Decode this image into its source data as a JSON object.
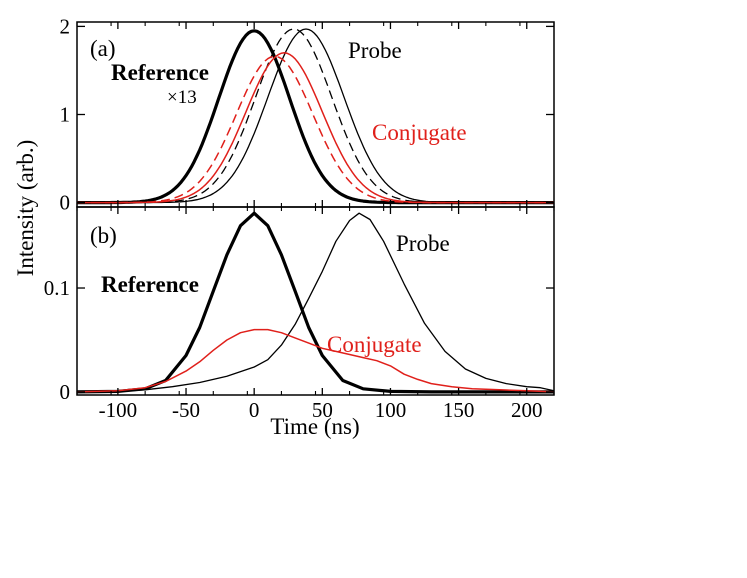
{
  "chart_data": [
    {
      "panel_label": "(a)",
      "type": "line",
      "xlim": [
        -130,
        220
      ],
      "ylim": [
        -0.05,
        2.05
      ],
      "x_ticks": [
        -100,
        -50,
        0,
        50,
        100,
        150,
        200
      ],
      "y_ticks": [
        0,
        1,
        2
      ],
      "y_tick_labels": [
        "0",
        "1",
        "2"
      ],
      "annotations": {
        "reference": "Reference",
        "scale": "×13",
        "probe": "Probe",
        "conjugate": "Conjugate"
      },
      "series": [
        {
          "label": "Reference",
          "color": "#000000",
          "style": "solid",
          "width": 3.2,
          "center": 0,
          "sigma": 26,
          "amplitude": 1.95
        },
        {
          "color": "#000000",
          "style": "solid",
          "width": 1.3,
          "center": 38,
          "sigma": 28,
          "amplitude": 1.97
        },
        {
          "color": "#000000",
          "style": "dashed",
          "width": 1.3,
          "center": 29,
          "sigma": 28,
          "amplitude": 1.97
        },
        {
          "color": "#e0201b",
          "style": "solid",
          "width": 1.5,
          "center": 22,
          "sigma": 28,
          "amplitude": 1.7
        },
        {
          "color": "#e0201b",
          "style": "dashed",
          "width": 1.5,
          "center": 15,
          "sigma": 28,
          "amplitude": 1.66
        }
      ]
    },
    {
      "panel_label": "(b)",
      "type": "line",
      "xlim": [
        -130,
        220
      ],
      "ylim": [
        -0.003,
        0.178
      ],
      "x_ticks": [
        -100,
        -50,
        0,
        50,
        100,
        150,
        200
      ],
      "x_tick_labels": [
        "-100",
        "-50",
        "0",
        "50",
        "100",
        "150",
        "200"
      ],
      "y_ticks": [
        0,
        0.1
      ],
      "y_tick_labels": [
        "0",
        "0.1"
      ],
      "xlabel": "Time (ns)",
      "annotations": {
        "reference": "Reference",
        "probe": "Probe",
        "conjugate": "Conjugate"
      },
      "series": [
        {
          "label": "Reference",
          "color": "#000000",
          "style": "solid",
          "width": 3.2,
          "points": [
            [
              -130,
              0.0
            ],
            [
              -100,
              0.0005
            ],
            [
              -80,
              0.003
            ],
            [
              -65,
              0.011
            ],
            [
              -50,
              0.035
            ],
            [
              -40,
              0.062
            ],
            [
              -30,
              0.097
            ],
            [
              -20,
              0.132
            ],
            [
              -10,
              0.16
            ],
            [
              0,
              0.172
            ],
            [
              10,
              0.16
            ],
            [
              20,
              0.132
            ],
            [
              30,
              0.097
            ],
            [
              40,
              0.062
            ],
            [
              50,
              0.035
            ],
            [
              65,
              0.011
            ],
            [
              80,
              0.003
            ],
            [
              100,
              0.0005
            ],
            [
              130,
              0.0
            ],
            [
              220,
              0.0
            ]
          ]
        },
        {
          "label": "Probe",
          "color": "#000000",
          "style": "solid",
          "width": 1.3,
          "points": [
            [
              -130,
              0.0
            ],
            [
              -100,
              0.0005
            ],
            [
              -80,
              0.002
            ],
            [
              -60,
              0.005
            ],
            [
              -40,
              0.009
            ],
            [
              -20,
              0.015
            ],
            [
              0,
              0.024
            ],
            [
              10,
              0.031
            ],
            [
              20,
              0.045
            ],
            [
              30,
              0.065
            ],
            [
              40,
              0.09
            ],
            [
              50,
              0.116
            ],
            [
              60,
              0.145
            ],
            [
              70,
              0.165
            ],
            [
              77,
              0.172
            ],
            [
              85,
              0.166
            ],
            [
              95,
              0.145
            ],
            [
              110,
              0.104
            ],
            [
              125,
              0.066
            ],
            [
              140,
              0.039
            ],
            [
              155,
              0.022
            ],
            [
              170,
              0.013
            ],
            [
              185,
              0.008
            ],
            [
              200,
              0.005
            ],
            [
              210,
              0.004
            ],
            [
              220,
              0.001
            ]
          ]
        },
        {
          "label": "Conjugate",
          "color": "#e0201b",
          "style": "solid",
          "width": 1.5,
          "points": [
            [
              -130,
              0.0
            ],
            [
              -100,
              0.001
            ],
            [
              -80,
              0.004
            ],
            [
              -65,
              0.01
            ],
            [
              -50,
              0.02
            ],
            [
              -40,
              0.029
            ],
            [
              -30,
              0.04
            ],
            [
              -20,
              0.05
            ],
            [
              -10,
              0.057
            ],
            [
              0,
              0.06
            ],
            [
              10,
              0.06
            ],
            [
              20,
              0.057
            ],
            [
              30,
              0.052
            ],
            [
              40,
              0.047
            ],
            [
              50,
              0.042
            ],
            [
              60,
              0.039
            ],
            [
              70,
              0.036
            ],
            [
              80,
              0.033
            ],
            [
              90,
              0.03
            ],
            [
              100,
              0.025
            ],
            [
              110,
              0.017
            ],
            [
              120,
              0.012
            ],
            [
              130,
              0.008
            ],
            [
              145,
              0.005
            ],
            [
              160,
              0.003
            ],
            [
              180,
              0.002
            ],
            [
              200,
              0.001
            ],
            [
              220,
              0.0
            ]
          ]
        }
      ]
    }
  ],
  "ylabel": "Intensity (arb.)"
}
